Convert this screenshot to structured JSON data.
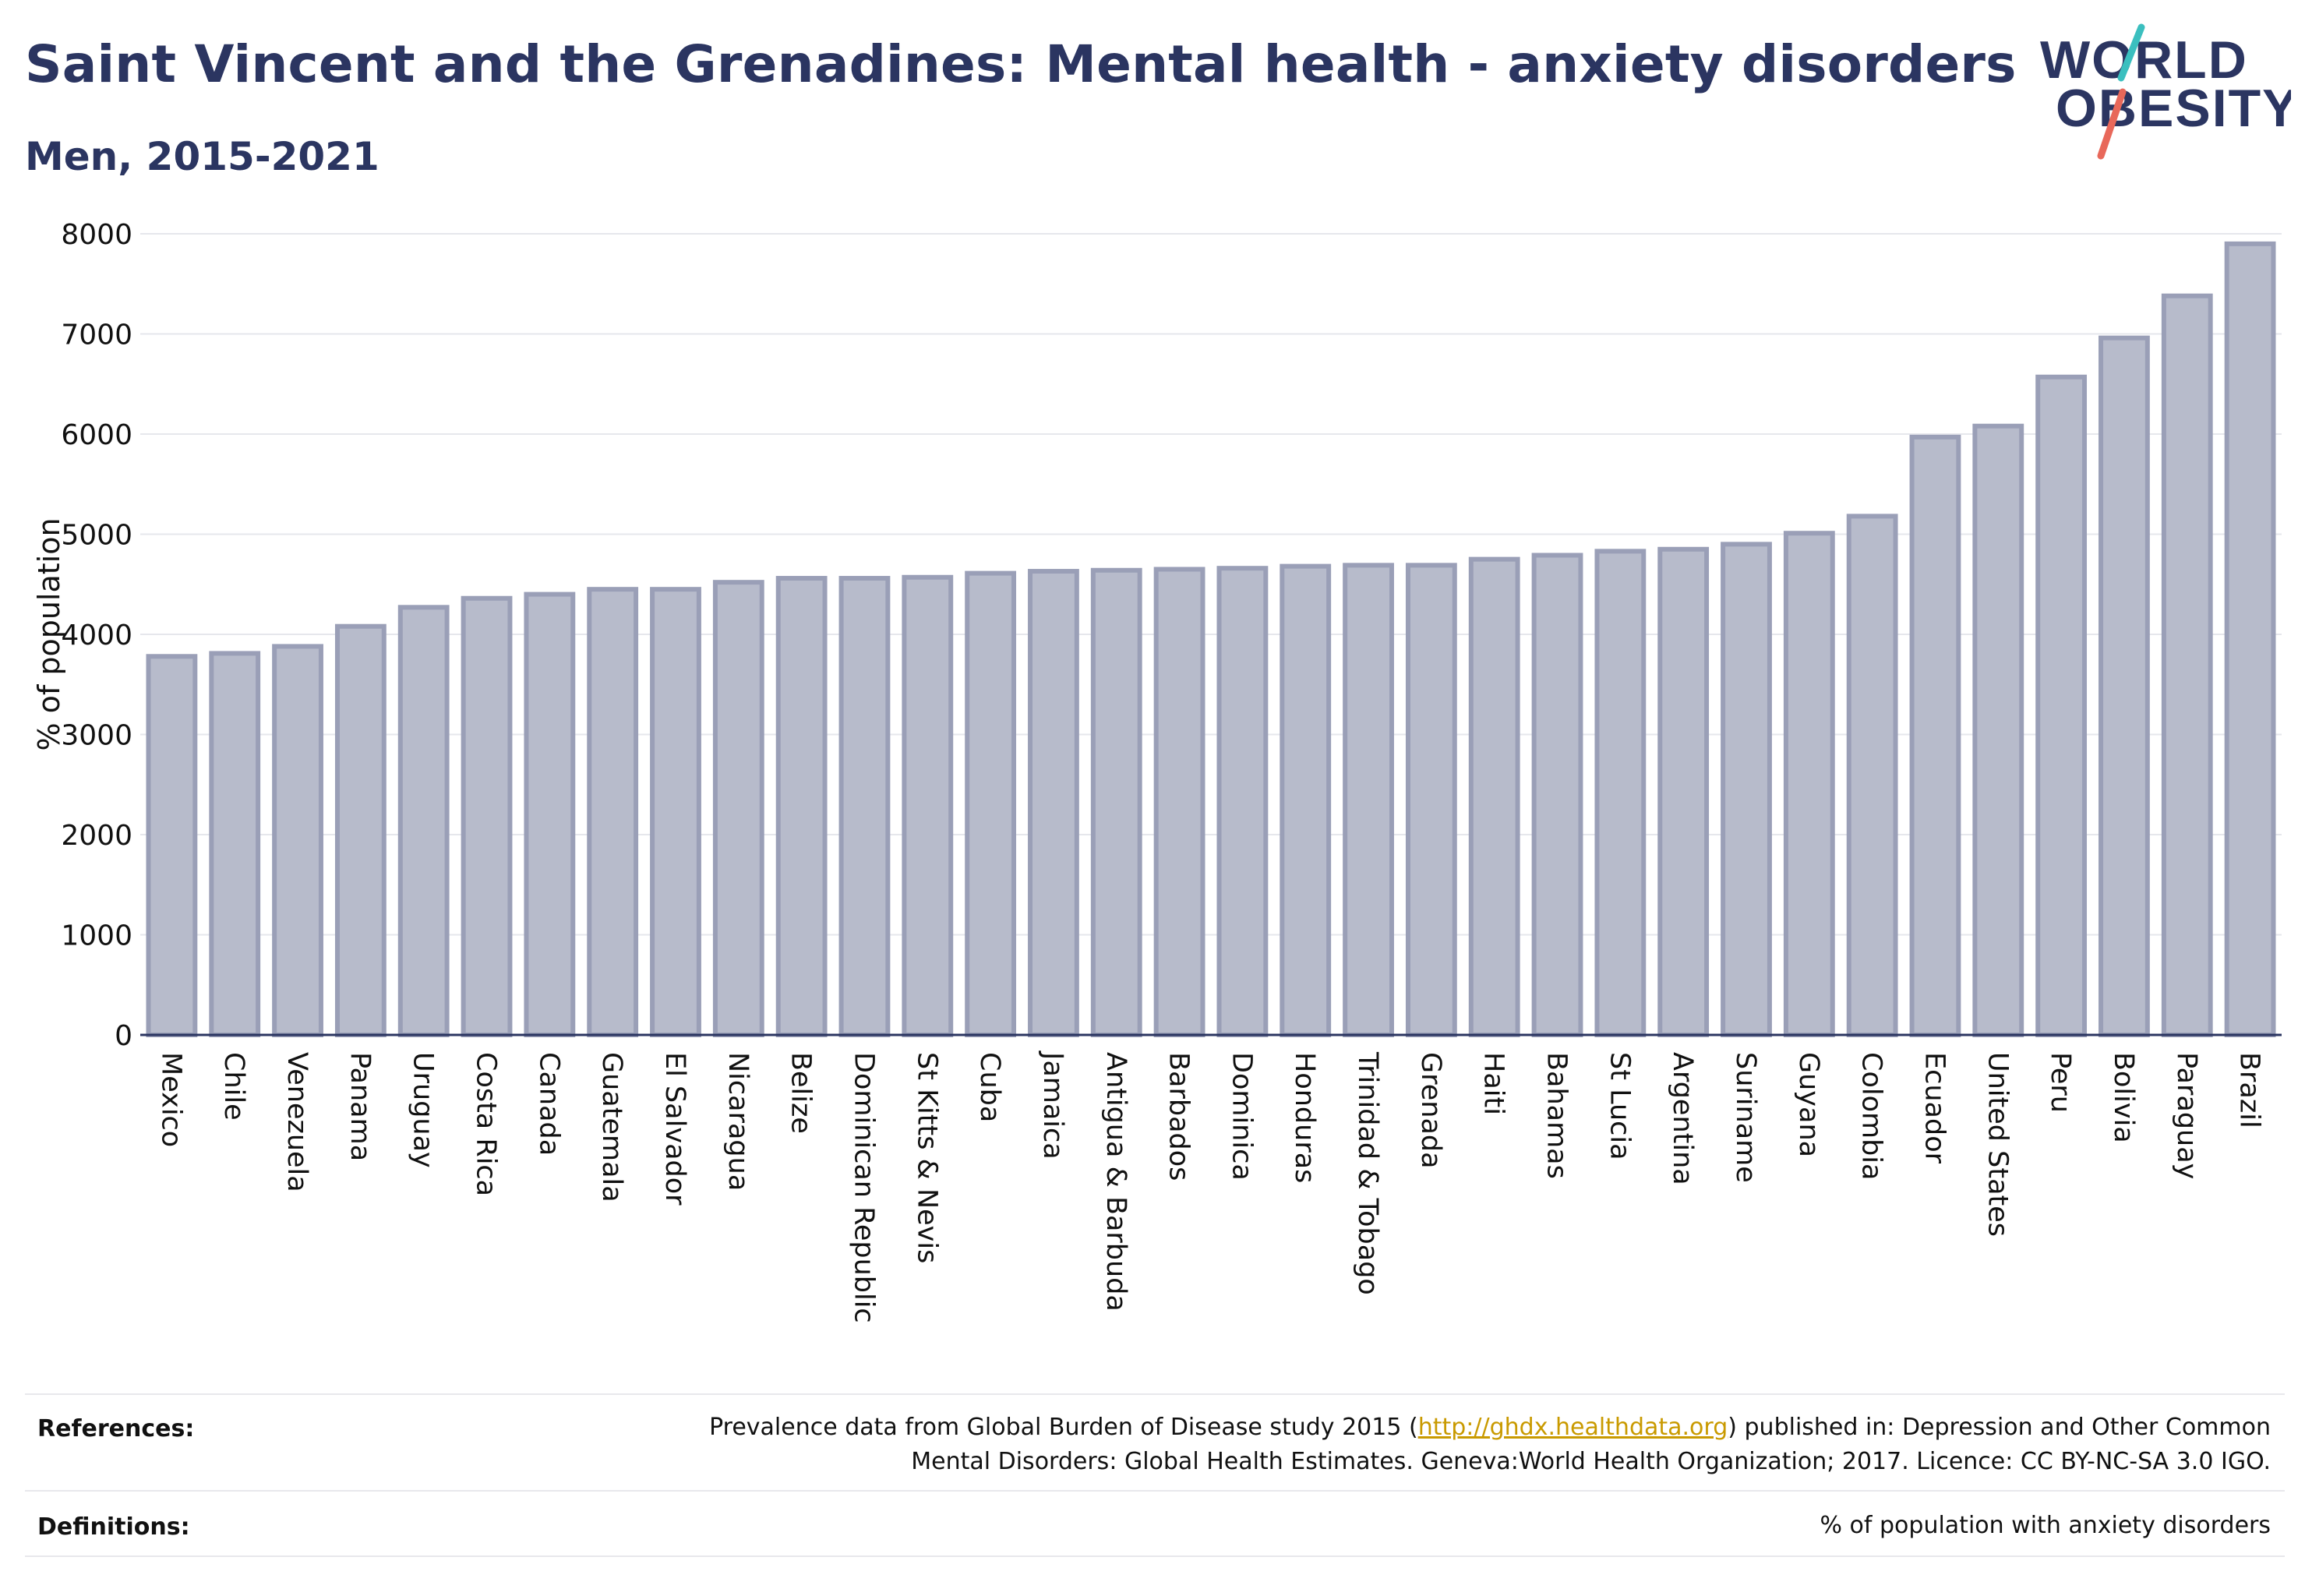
{
  "header": {
    "title": "Saint Vincent and the Grenadines: Mental health - anxiety disorders",
    "subtitle": "Men, 2015-2021"
  },
  "logo": {
    "line1": "WORLD",
    "line2": "OBESITY",
    "colors": {
      "text": "#2b3561",
      "slash_teal": "#3bbfbf",
      "slash_coral": "#e8685a"
    }
  },
  "chart_data": {
    "type": "bar",
    "title": "Saint Vincent and the Grenadines: Mental health - anxiety disorders",
    "subtitle": "Men, 2015-2021",
    "xlabel": "",
    "ylabel": "% of population",
    "ylim": [
      0,
      8000
    ],
    "yticks": [
      0,
      1000,
      2000,
      3000,
      4000,
      5000,
      6000,
      7000,
      8000
    ],
    "grid": true,
    "bar_color": "#b7bbcb",
    "bar_edge_color": "#9a9fb7",
    "categories": [
      "Mexico",
      "Chile",
      "Venezuela",
      "Panama",
      "Uruguay",
      "Costa Rica",
      "Canada",
      "Guatemala",
      "El Salvador",
      "Nicaragua",
      "Belize",
      "Dominican Republic",
      "St Kitts & Nevis",
      "Cuba",
      "Jamaica",
      "Antigua & Barbuda",
      "Barbados",
      "Dominica",
      "Honduras",
      "Trinidad & Tobago",
      "Grenada",
      "Haiti",
      "Bahamas",
      "St Lucia",
      "Argentina",
      "Suriname",
      "Guyana",
      "Colombia",
      "Ecuador",
      "United States",
      "Peru",
      "Bolivia",
      "Paraguay",
      "Brazil"
    ],
    "values": [
      3780,
      3810,
      3880,
      4080,
      4270,
      4360,
      4400,
      4450,
      4450,
      4520,
      4560,
      4560,
      4570,
      4610,
      4630,
      4640,
      4650,
      4660,
      4680,
      4690,
      4690,
      4750,
      4790,
      4830,
      4850,
      4900,
      5010,
      5180,
      5970,
      6080,
      6570,
      6960,
      7380,
      7900
    ]
  },
  "references": {
    "label": "References:",
    "text_before_link": "Prevalence data from Global Burden of Disease study 2015 (",
    "link": "http://ghdx.healthdata.org",
    "text_after_link": ") published in: Depression and Other Common",
    "line2": "Mental Disorders: Global Health Estimates. Geneva:World Health Organization; 2017. Licence: CC BY-NC-SA 3.0 IGO."
  },
  "definitions": {
    "label": "Definitions:",
    "text": "% of population with anxiety disorders"
  }
}
